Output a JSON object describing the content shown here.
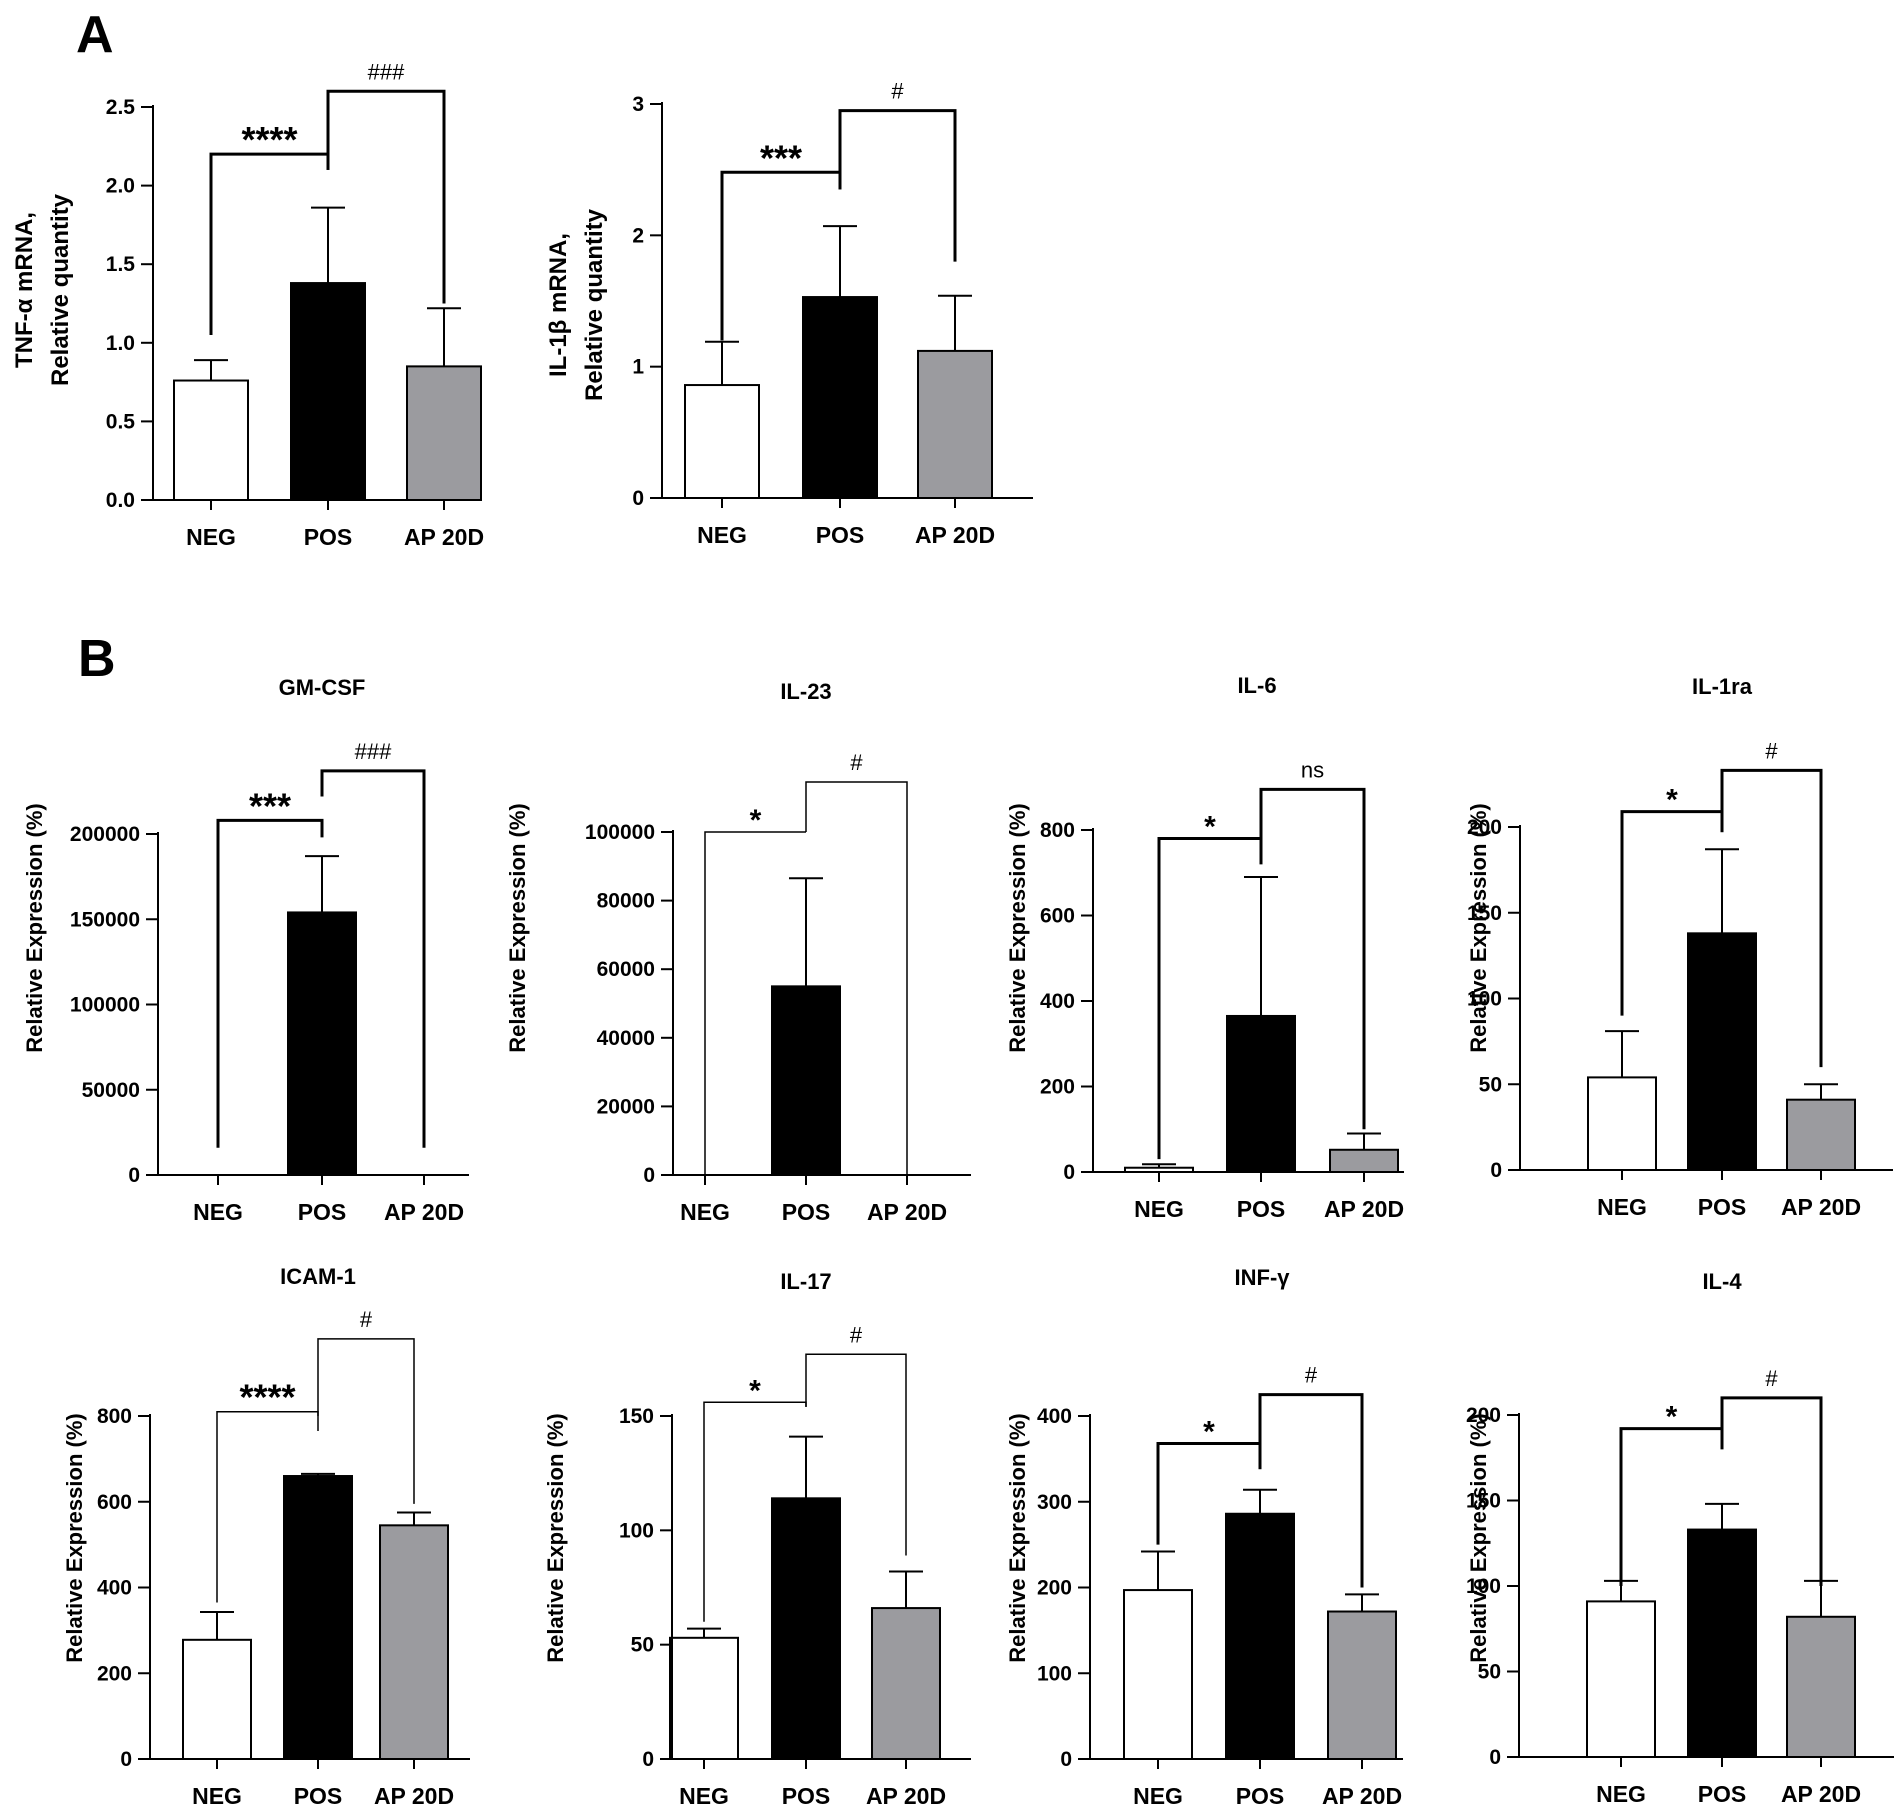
{
  "panels": [
    {
      "label": "A",
      "name": "panel-label-a"
    },
    {
      "label": "B",
      "name": "panel-label-b"
    }
  ],
  "colors": {
    "NEG": "#ffffff",
    "POS": "#000000",
    "AP 20D": "#9b9b9f",
    "stroke": "#000000"
  },
  "chart_data": [
    {
      "id": "tnf-alpha",
      "panel": "A",
      "type": "bar",
      "title": "",
      "ylabel": [
        "TNF-α mRNA,",
        "Relative quantity"
      ],
      "categories": [
        "NEG",
        "POS",
        "AP 20D"
      ],
      "values": [
        0.76,
        1.38,
        0.85
      ],
      "errors": [
        0.13,
        0.48,
        0.37
      ],
      "ylim": [
        0,
        2.5
      ],
      "yticks": [
        0,
        0.5,
        1,
        1.5,
        2,
        2.5
      ],
      "ytick_labels": [
        "0.0",
        "0.5",
        "1.0",
        "1.5",
        "2.0",
        "2.5"
      ],
      "significance": [
        {
          "from": 0,
          "to": 1,
          "label": "****",
          "kind": "star",
          "y": 2.2,
          "bracket_ends": [
            1.05,
            2.1
          ]
        },
        {
          "from": 1,
          "to": 2,
          "label": "###",
          "kind": "hash",
          "y": 2.6,
          "bracket_ends": [
            2.1,
            1.25
          ]
        }
      ]
    },
    {
      "id": "il-1beta",
      "panel": "A",
      "type": "bar",
      "title": "",
      "ylabel": [
        "IL-1β mRNA,",
        "Relative quantity"
      ],
      "categories": [
        "NEG",
        "POS",
        "AP 20D"
      ],
      "values": [
        0.86,
        1.53,
        1.12
      ],
      "errors": [
        0.33,
        0.54,
        0.42
      ],
      "ylim": [
        0,
        3
      ],
      "yticks": [
        0,
        1,
        2,
        3
      ],
      "ytick_labels": [
        "0",
        "1",
        "2",
        "3"
      ],
      "significance": [
        {
          "from": 0,
          "to": 1,
          "label": "***",
          "kind": "star",
          "y": 2.48,
          "bracket_ends": [
            1.2,
            2.35
          ]
        },
        {
          "from": 1,
          "to": 2,
          "label": "#",
          "kind": "hash",
          "y": 2.95,
          "bracket_ends": [
            2.35,
            1.8
          ]
        }
      ]
    },
    {
      "id": "gm-csf",
      "panel": "B",
      "type": "bar",
      "title": "GM-CSF",
      "ylabel": [
        "Relative Expression (%)"
      ],
      "categories": [
        "NEG",
        "POS",
        "AP 20D"
      ],
      "values": [
        0,
        154000,
        0
      ],
      "errors": [
        0,
        33000,
        0
      ],
      "ylim": [
        0,
        200000
      ],
      "yticks": [
        0,
        50000,
        100000,
        150000,
        200000
      ],
      "ytick_labels": [
        "0",
        "50000",
        "100000",
        "150000",
        "200000"
      ],
      "significance": [
        {
          "from": 0,
          "to": 1,
          "label": "***",
          "kind": "star",
          "y": 208000,
          "bracket_ends": [
            16000,
            198000
          ]
        },
        {
          "from": 1,
          "to": 2,
          "label": "###",
          "kind": "hash",
          "y": 237000,
          "bracket_ends": [
            222000,
            16000
          ]
        }
      ]
    },
    {
      "id": "il-23",
      "panel": "B",
      "type": "bar",
      "title": "IL-23",
      "ylabel": [
        "Relative Expression (%)"
      ],
      "categories": [
        "NEG",
        "POS",
        "AP 20D"
      ],
      "values": [
        0,
        55000,
        0
      ],
      "errors": [
        0,
        31500,
        0
      ],
      "ylim": [
        0,
        100000
      ],
      "yticks": [
        0,
        20000,
        40000,
        60000,
        80000,
        100000
      ],
      "ytick_labels": [
        "0",
        "20000",
        "40000",
        "60000",
        "80000",
        "100000"
      ],
      "significance": [
        {
          "from": 0,
          "to": 1,
          "label": "*",
          "kind": "star",
          "y": 99000,
          "bracket_ends": [
            0,
            0
          ]
        },
        {
          "from": 1,
          "to": 2,
          "label": "#",
          "kind": "hash",
          "y": 114500,
          "bracket_ends": [
            0,
            0
          ]
        }
      ]
    },
    {
      "id": "il-6",
      "panel": "B",
      "type": "bar",
      "title": "IL-6",
      "ylabel": [
        "Relative Expression (%)"
      ],
      "categories": [
        "NEG",
        "POS",
        "AP 20D"
      ],
      "values": [
        10,
        365,
        52
      ],
      "errors": [
        8,
        325,
        38
      ],
      "ylim": [
        0,
        800
      ],
      "yticks": [
        0,
        200,
        400,
        600,
        800
      ],
      "ytick_labels": [
        "0",
        "200",
        "400",
        "600",
        "800"
      ],
      "significance": [
        {
          "from": 0,
          "to": 1,
          "label": "*",
          "kind": "star",
          "y": 780,
          "bracket_ends": [
            30,
            720
          ]
        },
        {
          "from": 1,
          "to": 2,
          "label": "ns",
          "kind": "hash",
          "y": 895,
          "bracket_ends": [
            720,
            100
          ]
        }
      ]
    },
    {
      "id": "il-1ra",
      "panel": "B",
      "type": "bar",
      "title": "IL-1ra",
      "ylabel": [
        "Relative Expression (%)"
      ],
      "categories": [
        "NEG",
        "POS",
        "AP 20D"
      ],
      "values": [
        54,
        138,
        41
      ],
      "errors": [
        27,
        49,
        9
      ],
      "ylim": [
        0,
        200
      ],
      "yticks": [
        0,
        50,
        100,
        150,
        200
      ],
      "ytick_labels": [
        "0",
        "50",
        "100",
        "150",
        "200"
      ],
      "significance": [
        {
          "from": 0,
          "to": 1,
          "label": "*",
          "kind": "star",
          "y": 209,
          "bracket_ends": [
            90,
            197
          ]
        },
        {
          "from": 1,
          "to": 2,
          "label": "#",
          "kind": "hash",
          "y": 233,
          "bracket_ends": [
            197,
            60
          ]
        }
      ]
    },
    {
      "id": "icam-1",
      "panel": "B",
      "type": "bar",
      "title": "ICAM-1",
      "ylabel": [
        "Relative Expression (%)"
      ],
      "categories": [
        "NEG",
        "POS",
        "AP 20D"
      ],
      "values": [
        278,
        660,
        545
      ],
      "errors": [
        65,
        5,
        30
      ],
      "ylim": [
        0,
        800
      ],
      "yticks": [
        0,
        200,
        400,
        600,
        800
      ],
      "ytick_labels": [
        "0",
        "200",
        "400",
        "600",
        "800"
      ],
      "significance": [
        {
          "from": 0,
          "to": 1,
          "label": "****",
          "kind": "star",
          "y": 810,
          "bracket_ends": [
            365,
            765
          ]
        },
        {
          "from": 1,
          "to": 2,
          "label": "#",
          "kind": "hash",
          "y": 980,
          "bracket_ends": [
            800,
            595
          ]
        }
      ]
    },
    {
      "id": "il-17",
      "panel": "B",
      "type": "bar",
      "title": "IL-17",
      "ylabel": [
        "Relative Expression (%)"
      ],
      "categories": [
        "NEG",
        "POS",
        "AP 20D"
      ],
      "values": [
        53,
        114,
        66
      ],
      "errors": [
        4,
        27,
        16
      ],
      "ylim": [
        0,
        150
      ],
      "yticks": [
        0,
        50,
        100,
        150
      ],
      "ytick_labels": [
        "0",
        "50",
        "100",
        "150"
      ],
      "significance": [
        {
          "from": 0,
          "to": 1,
          "label": "*",
          "kind": "star",
          "y": 156,
          "bracket_ends": [
            60,
            154
          ]
        },
        {
          "from": 1,
          "to": 2,
          "label": "#",
          "kind": "hash",
          "y": 177,
          "bracket_ends": [
            154,
            89
          ]
        }
      ]
    },
    {
      "id": "inf-gamma",
      "panel": "B",
      "type": "bar",
      "title": "INF-γ",
      "ylabel": [
        "Relative Expression (%)"
      ],
      "categories": [
        "NEG",
        "POS",
        "AP 20D"
      ],
      "values": [
        197,
        286,
        172
      ],
      "errors": [
        45,
        28,
        20
      ],
      "ylim": [
        0,
        400
      ],
      "yticks": [
        0,
        100,
        200,
        300,
        400
      ],
      "ytick_labels": [
        "0",
        "100",
        "200",
        "300",
        "400"
      ],
      "significance": [
        {
          "from": 0,
          "to": 1,
          "label": "*",
          "kind": "star",
          "y": 368,
          "bracket_ends": [
            250,
            338
          ]
        },
        {
          "from": 1,
          "to": 2,
          "label": "#",
          "kind": "hash",
          "y": 425,
          "bracket_ends": [
            338,
            200
          ]
        }
      ]
    },
    {
      "id": "il-4",
      "panel": "B",
      "type": "bar",
      "title": "IL-4",
      "ylabel": [
        "Relative Expression (%)"
      ],
      "categories": [
        "NEG",
        "POS",
        "AP 20D"
      ],
      "values": [
        91,
        133,
        82
      ],
      "errors": [
        12,
        15,
        21
      ],
      "ylim": [
        0,
        200
      ],
      "yticks": [
        0,
        50,
        100,
        150,
        200
      ],
      "ytick_labels": [
        "0",
        "50",
        "100",
        "150",
        "200"
      ],
      "significance": [
        {
          "from": 0,
          "to": 1,
          "label": "*",
          "kind": "star",
          "y": 192,
          "bracket_ends": [
            100,
            180
          ]
        },
        {
          "from": 1,
          "to": 2,
          "label": "#",
          "kind": "hash",
          "y": 210,
          "bracket_ends": [
            180,
            100
          ]
        }
      ]
    }
  ]
}
